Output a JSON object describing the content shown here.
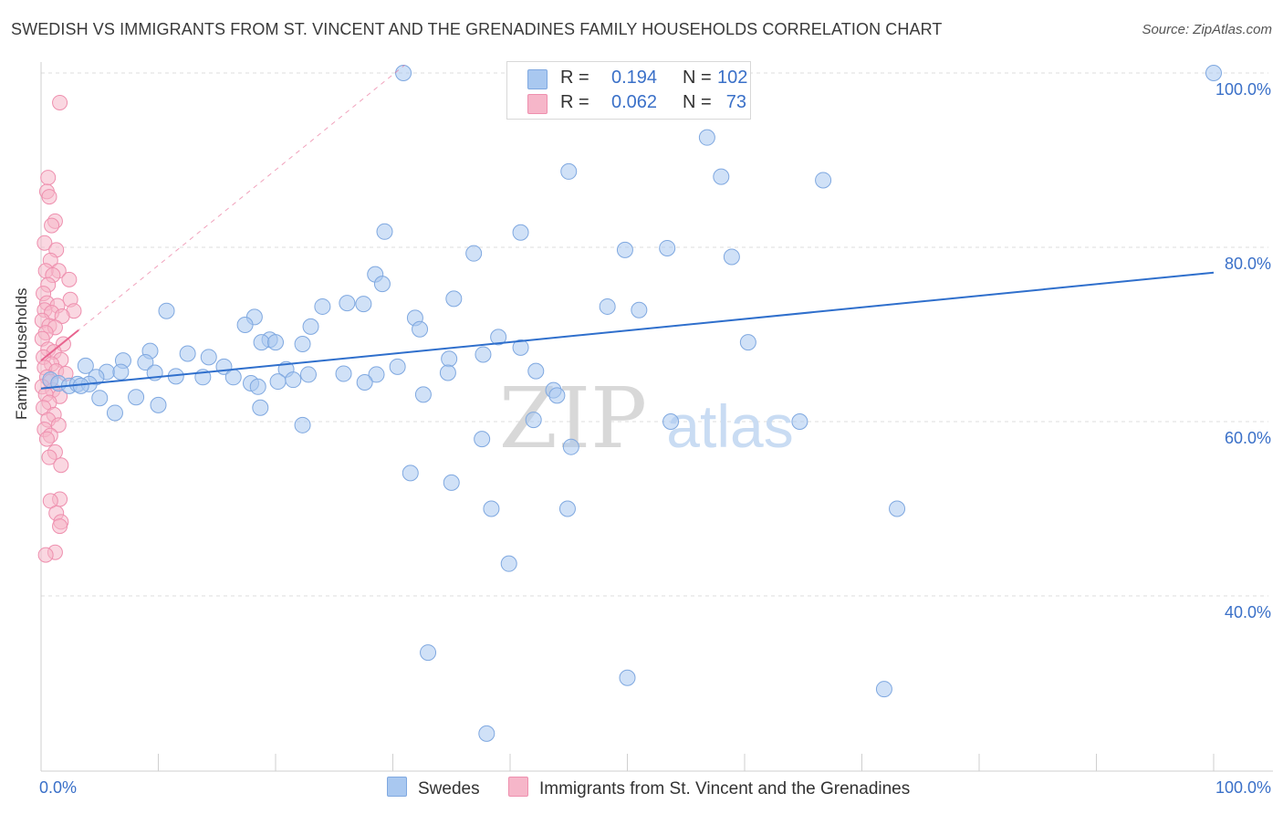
{
  "title": "SWEDISH VS IMMIGRANTS FROM ST. VINCENT AND THE GRENADINES FAMILY HOUSEHOLDS CORRELATION CHART",
  "source": "Source: ZipAtlas.com",
  "watermark": {
    "zip": "ZIP",
    "atlas": "atlas"
  },
  "colors": {
    "blue_fill": "#a9c8f0",
    "blue_stroke": "#7fa8e0",
    "blue_line": "#2f6fcc",
    "pink_fill": "#f6b6c9",
    "pink_stroke": "#ee8fae",
    "pink_line": "#e8648f",
    "tick_text": "#3a70c8",
    "grid": "#dcdcdc"
  },
  "legend_top": [
    {
      "r_label": "R =",
      "r_value": "0.194",
      "n_label": "N =",
      "n_value": "102"
    },
    {
      "r_label": "R =",
      "r_value": "0.062",
      "n_label": "N =",
      "n_value": "73"
    }
  ],
  "legend_bottom": [
    "Swedes",
    "Immigrants from St. Vincent and the Grenadines"
  ],
  "chart_data": {
    "type": "scatter",
    "title": "SWEDISH VS IMMIGRANTS FROM ST. VINCENT AND THE GRENADINES FAMILY HOUSEHOLDS CORRELATION CHART",
    "xlabel": "",
    "ylabel": "Family Households",
    "xlim": [
      0,
      100
    ],
    "ylim": [
      20,
      101
    ],
    "x_tick_labels": [
      "0.0%",
      "100.0%"
    ],
    "y_ticks": [
      40,
      60,
      80,
      100
    ],
    "y_tick_labels": [
      "40.0%",
      "60.0%",
      "80.0%",
      "100.0%"
    ],
    "grid": true,
    "legend_placement": "top-center",
    "series": [
      {
        "name": "Swedes",
        "r": 0.194,
        "n": 102,
        "trend": {
          "x": [
            0,
            100
          ],
          "y": [
            63.8,
            77.1
          ]
        },
        "points": [
          [
            30.9,
            100
          ],
          [
            43.2,
            100
          ],
          [
            46.7,
            100
          ],
          [
            56.3,
            100
          ],
          [
            100,
            100
          ],
          [
            56.8,
            92.6
          ],
          [
            45.0,
            88.7
          ],
          [
            58.0,
            88.1
          ],
          [
            66.7,
            87.7
          ],
          [
            29.3,
            81.8
          ],
          [
            40.9,
            81.7
          ],
          [
            36.9,
            79.3
          ],
          [
            53.4,
            79.9
          ],
          [
            49.8,
            79.7
          ],
          [
            58.9,
            78.9
          ],
          [
            28.5,
            76.9
          ],
          [
            29.1,
            75.8
          ],
          [
            35.2,
            74.1
          ],
          [
            26.1,
            73.6
          ],
          [
            27.5,
            73.5
          ],
          [
            24.0,
            73.2
          ],
          [
            48.3,
            73.2
          ],
          [
            51.0,
            72.8
          ],
          [
            10.7,
            72.7
          ],
          [
            18.2,
            72.0
          ],
          [
            31.9,
            71.9
          ],
          [
            17.4,
            71.1
          ],
          [
            23.0,
            70.9
          ],
          [
            32.3,
            70.6
          ],
          [
            39.0,
            69.7
          ],
          [
            19.5,
            69.4
          ],
          [
            18.8,
            69.1
          ],
          [
            20.0,
            69.1
          ],
          [
            22.3,
            68.9
          ],
          [
            60.3,
            69.1
          ],
          [
            40.9,
            68.5
          ],
          [
            9.3,
            68.1
          ],
          [
            12.5,
            67.8
          ],
          [
            14.3,
            67.4
          ],
          [
            7.0,
            67.0
          ],
          [
            8.9,
            66.8
          ],
          [
            37.7,
            67.7
          ],
          [
            34.8,
            67.2
          ],
          [
            3.8,
            66.4
          ],
          [
            5.6,
            65.7
          ],
          [
            4.7,
            65.1
          ],
          [
            6.8,
            65.7
          ],
          [
            9.7,
            65.6
          ],
          [
            11.5,
            65.2
          ],
          [
            13.8,
            65.1
          ],
          [
            15.6,
            66.3
          ],
          [
            16.4,
            65.1
          ],
          [
            20.9,
            66.0
          ],
          [
            22.8,
            65.4
          ],
          [
            25.8,
            65.5
          ],
          [
            28.6,
            65.4
          ],
          [
            30.4,
            66.3
          ],
          [
            42.2,
            65.8
          ],
          [
            34.7,
            65.6
          ],
          [
            0.8,
            64.8
          ],
          [
            1.5,
            64.4
          ],
          [
            2.4,
            64.1
          ],
          [
            3.1,
            64.3
          ],
          [
            4.1,
            64.3
          ],
          [
            3.4,
            64.1
          ],
          [
            17.9,
            64.4
          ],
          [
            18.5,
            64.0
          ],
          [
            20.2,
            64.6
          ],
          [
            21.5,
            64.8
          ],
          [
            27.6,
            64.5
          ],
          [
            32.6,
            63.1
          ],
          [
            43.7,
            63.6
          ],
          [
            44.0,
            63.0
          ],
          [
            5.0,
            62.7
          ],
          [
            8.1,
            62.8
          ],
          [
            10.0,
            61.9
          ],
          [
            18.7,
            61.6
          ],
          [
            6.3,
            61.0
          ],
          [
            42.0,
            60.2
          ],
          [
            53.7,
            60.0
          ],
          [
            64.7,
            60.0
          ],
          [
            22.3,
            59.6
          ],
          [
            37.6,
            58.0
          ],
          [
            45.2,
            57.1
          ],
          [
            31.5,
            54.1
          ],
          [
            35.0,
            53.0
          ],
          [
            38.4,
            50.0
          ],
          [
            44.9,
            50.0
          ],
          [
            73.0,
            50.0
          ],
          [
            39.9,
            43.7
          ],
          [
            33.0,
            33.5
          ],
          [
            50.0,
            30.6
          ],
          [
            71.9,
            29.3
          ],
          [
            38.0,
            24.2
          ]
        ]
      },
      {
        "name": "Immigrants from St. Vincent and the Grenadines",
        "r": 0.062,
        "n": 73,
        "trend": {
          "x": [
            0,
            3.2
          ],
          "y": [
            67.0,
            70.5
          ]
        },
        "points": [
          [
            1.6,
            96.6
          ],
          [
            0.6,
            88.0
          ],
          [
            0.5,
            86.4
          ],
          [
            0.7,
            85.8
          ],
          [
            1.2,
            83.0
          ],
          [
            0.9,
            82.5
          ],
          [
            0.3,
            80.5
          ],
          [
            1.3,
            79.7
          ],
          [
            0.8,
            78.5
          ],
          [
            1.5,
            77.3
          ],
          [
            0.4,
            77.3
          ],
          [
            1.0,
            76.8
          ],
          [
            2.4,
            76.3
          ],
          [
            0.6,
            75.7
          ],
          [
            0.2,
            74.7
          ],
          [
            2.5,
            74.0
          ],
          [
            0.5,
            73.6
          ],
          [
            1.4,
            73.3
          ],
          [
            0.3,
            72.8
          ],
          [
            0.9,
            72.5
          ],
          [
            2.8,
            72.7
          ],
          [
            1.8,
            72.1
          ],
          [
            0.1,
            71.6
          ],
          [
            0.7,
            71.0
          ],
          [
            1.2,
            70.8
          ],
          [
            0.4,
            70.2
          ],
          [
            0.1,
            69.5
          ],
          [
            1.9,
            68.9
          ],
          [
            0.6,
            68.3
          ],
          [
            1.1,
            68.0
          ],
          [
            0.2,
            67.4
          ],
          [
            1.7,
            67.1
          ],
          [
            0.9,
            66.6
          ],
          [
            0.3,
            66.2
          ],
          [
            1.3,
            65.8
          ],
          [
            2.1,
            65.5
          ],
          [
            0.5,
            65.1
          ],
          [
            0.8,
            64.6
          ],
          [
            0.1,
            64.0
          ],
          [
            1.0,
            63.6
          ],
          [
            0.4,
            63.1
          ],
          [
            1.6,
            62.9
          ],
          [
            0.7,
            62.2
          ],
          [
            0.2,
            61.6
          ],
          [
            1.1,
            60.8
          ],
          [
            0.6,
            60.2
          ],
          [
            1.5,
            59.6
          ],
          [
            0.3,
            59.1
          ],
          [
            0.8,
            58.4
          ],
          [
            0.5,
            58.0
          ],
          [
            1.2,
            56.5
          ],
          [
            0.7,
            55.9
          ],
          [
            1.7,
            55.0
          ],
          [
            1.6,
            51.1
          ],
          [
            0.8,
            50.9
          ],
          [
            1.3,
            49.5
          ],
          [
            1.7,
            48.5
          ],
          [
            1.6,
            48.0
          ],
          [
            1.2,
            45.0
          ],
          [
            0.4,
            44.7
          ]
        ]
      }
    ]
  }
}
